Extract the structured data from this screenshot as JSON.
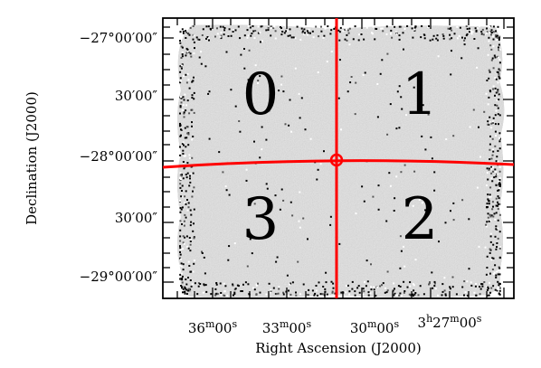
{
  "figure": {
    "y_axis_title": "Declination (J2000)",
    "x_axis_title": "Right Ascension (J2000)",
    "y_tick_labels": [
      {
        "main": "−27°00′00″"
      },
      {
        "main": "30′00″"
      },
      {
        "main": "−28°00′00″"
      },
      {
        "main": "30′00″"
      },
      {
        "main": "−29°00′00″"
      }
    ],
    "x_tick_labels": [
      {
        "h": "",
        "hs": "",
        "m": "36",
        "ms": "m",
        "s": "00",
        "ss": "s"
      },
      {
        "h": "",
        "hs": "",
        "m": "33",
        "ms": "m",
        "s": "00",
        "ss": "s"
      },
      {
        "h": "",
        "hs": "",
        "m": "30",
        "ms": "m",
        "s": "00",
        "ss": "s"
      },
      {
        "h": "3",
        "hs": "h",
        "m": "27",
        "ms": "m",
        "s": "00",
        "ss": "s"
      }
    ],
    "quadrant_labels": [
      "0",
      "1",
      "2",
      "3"
    ],
    "colors": {
      "divider_lines": "#ff0000",
      "frame": "#000000",
      "noise_field": "#bdbdbd"
    }
  }
}
